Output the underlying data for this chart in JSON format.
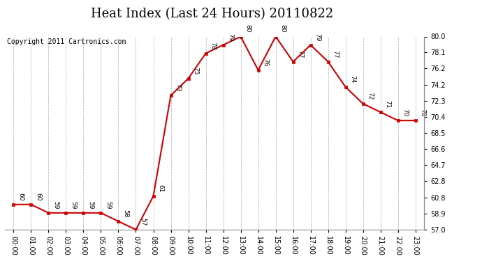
{
  "title": "Heat Index (Last 24 Hours) 20110822",
  "copyright": "Copyright 2011 Cartronics.com",
  "x_labels": [
    "00:00",
    "01:00",
    "02:00",
    "03:00",
    "04:00",
    "05:00",
    "06:00",
    "07:00",
    "08:00",
    "09:00",
    "10:00",
    "11:00",
    "12:00",
    "13:00",
    "14:00",
    "15:00",
    "16:00",
    "17:00",
    "18:00",
    "19:00",
    "20:00",
    "21:00",
    "22:00",
    "23:00"
  ],
  "y_values": [
    60,
    60,
    59,
    59,
    59,
    59,
    58,
    57,
    61,
    73,
    75,
    78,
    79,
    80,
    76,
    80,
    77,
    79,
    77,
    74,
    72,
    71,
    70,
    70
  ],
  "ylim_min": 57.0,
  "ylim_max": 80.0,
  "yticks_right": [
    57.0,
    58.9,
    60.8,
    62.8,
    64.7,
    66.6,
    68.5,
    70.4,
    72.3,
    74.2,
    76.2,
    78.1,
    80.0
  ],
  "line_color": "#cc0000",
  "marker_color": "#cc0000",
  "bg_color": "#ffffff",
  "grid_color": "#aaaaaa",
  "title_fontsize": 13,
  "copyright_fontsize": 7,
  "label_fontsize": 7,
  "annotation_fontsize": 6.5
}
